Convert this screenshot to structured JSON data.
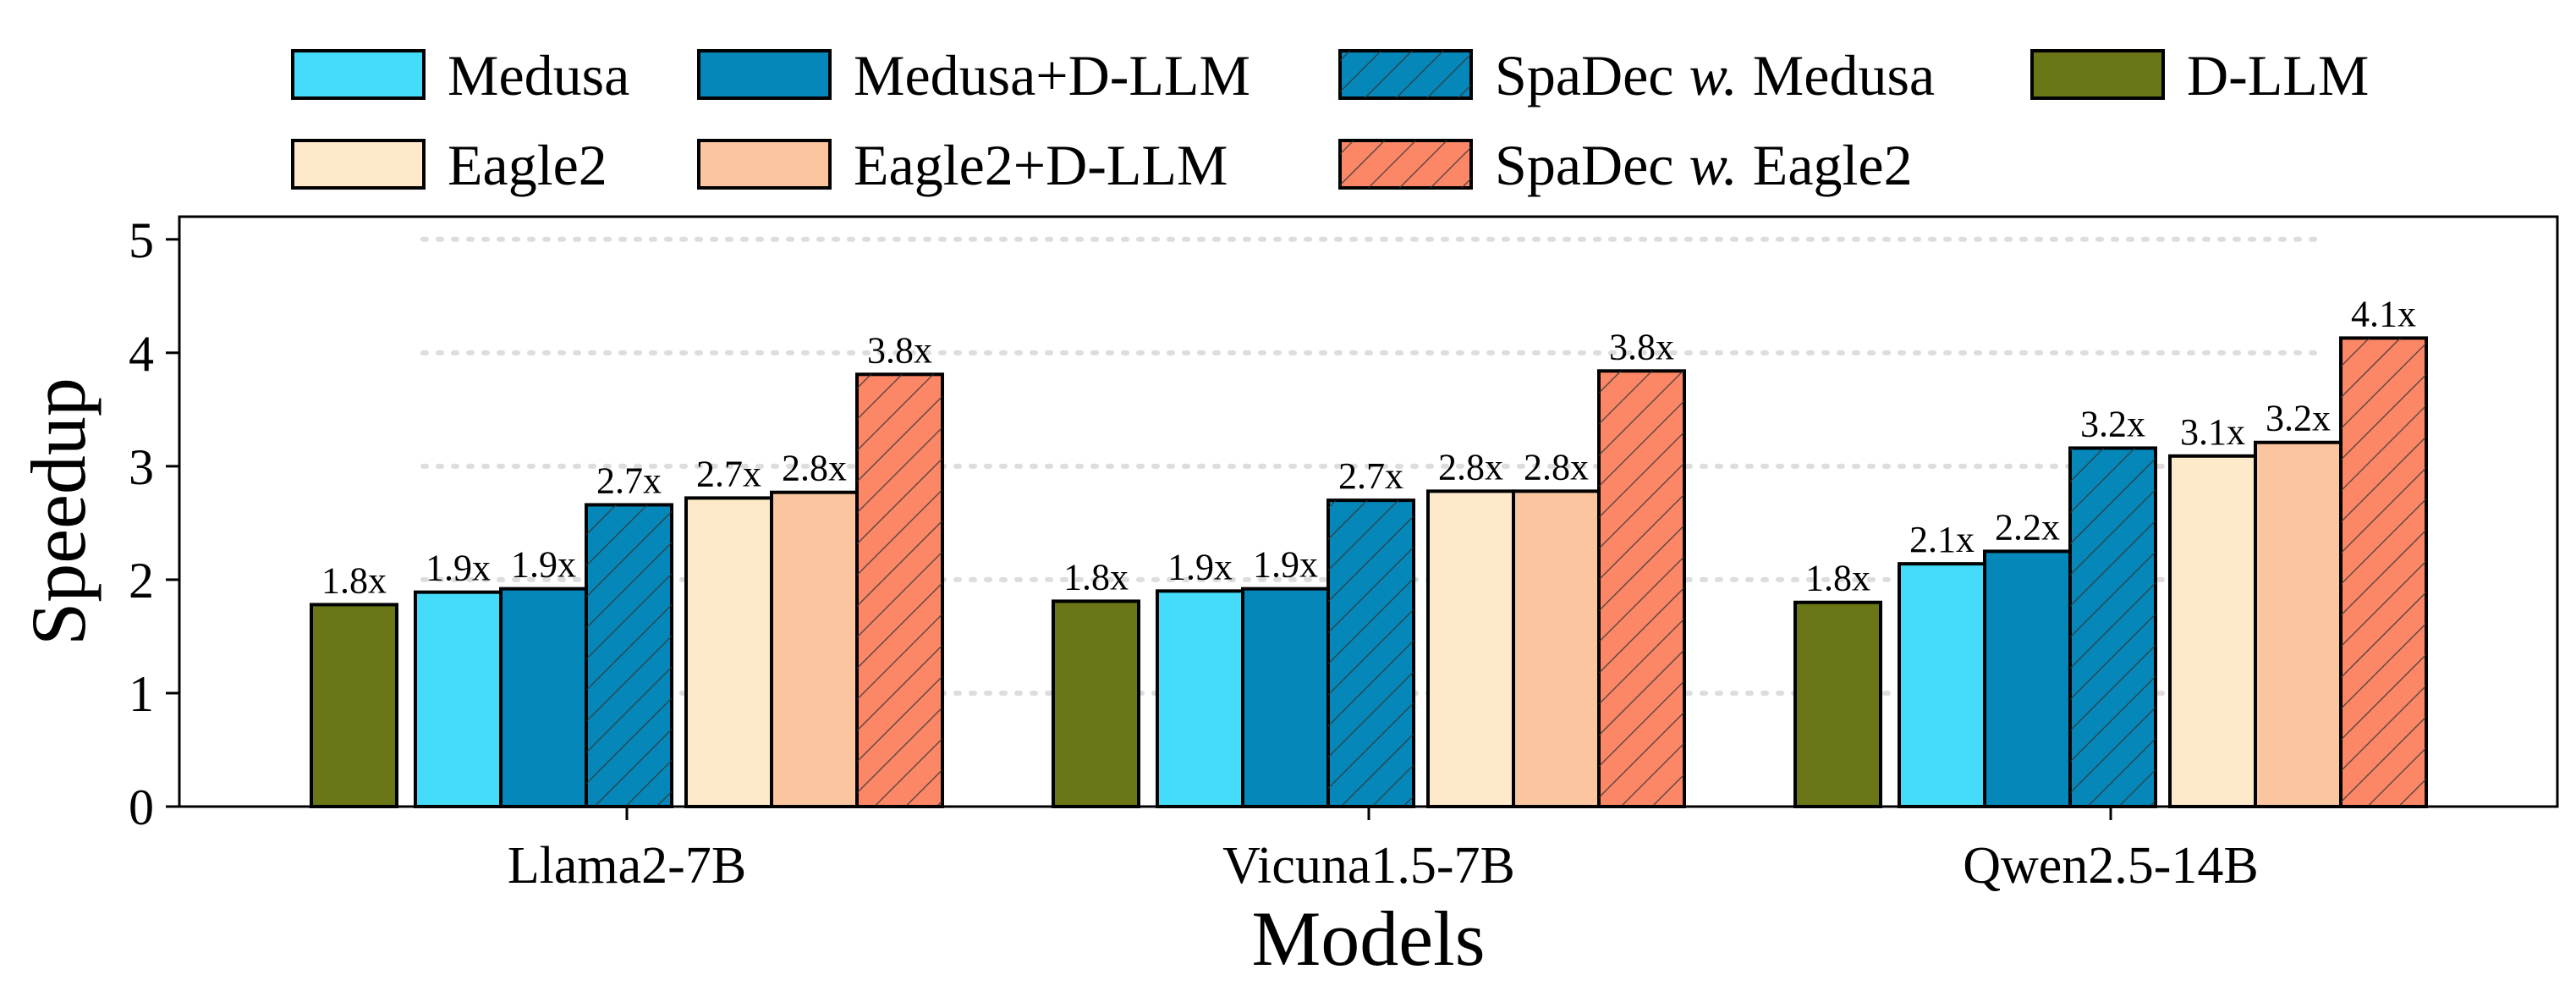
{
  "chart_data": {
    "type": "bar",
    "title": "",
    "xlabel": "Models",
    "ylabel": "Speedup",
    "ylim": [
      0,
      5.2
    ],
    "yticks": [
      "0",
      "1",
      "2",
      "3",
      "4",
      "5"
    ],
    "grid": "horizontal dotted",
    "legend_position": "top",
    "categories": [
      "Llama2-7B",
      "Vicuna1.5-7B",
      "Qwen2.5-14B"
    ],
    "series": [
      {
        "name": "D-LLM",
        "color": "#6b7716",
        "hatch": false,
        "values": [
          1.78,
          1.81,
          1.8
        ],
        "labels": [
          "1.8x",
          "1.8x",
          "1.8x"
        ]
      },
      {
        "name": "Medusa",
        "color": "#45dcfb",
        "hatch": false,
        "values": [
          1.89,
          1.9,
          2.14
        ],
        "labels": [
          "1.9x",
          "1.9x",
          "2.1x"
        ]
      },
      {
        "name": "Medusa+D-LLM",
        "color": "#0588b9",
        "hatch": false,
        "values": [
          1.92,
          1.92,
          2.25
        ],
        "labels": [
          "1.9x",
          "1.9x",
          "2.2x"
        ]
      },
      {
        "name": "SpaDec w. Medusa",
        "color": "#0588b9",
        "hatch": true,
        "values": [
          2.66,
          2.7,
          3.16
        ],
        "labels": [
          "2.7x",
          "2.7x",
          "3.2x"
        ]
      },
      {
        "name": "Eagle2",
        "color": "#feeacb",
        "hatch": false,
        "values": [
          2.72,
          2.78,
          3.09
        ],
        "labels": [
          "2.7x",
          "2.8x",
          "3.1x"
        ]
      },
      {
        "name": "Eagle2+D-LLM",
        "color": "#fbc69f",
        "hatch": false,
        "values": [
          2.77,
          2.78,
          3.21
        ],
        "labels": [
          "2.8x",
          "2.8x",
          "3.2x"
        ]
      },
      {
        "name": "SpaDec w. Eagle2",
        "color": "#fc8766",
        "hatch": true,
        "values": [
          3.81,
          3.84,
          4.13
        ],
        "labels": [
          "3.8x",
          "3.8x",
          "4.1x"
        ]
      }
    ],
    "legend_rows": [
      [
        {
          "series": "Medusa",
          "text": "Medusa"
        },
        {
          "series": "Medusa+D-LLM",
          "text": "Medusa+D-LLM"
        },
        {
          "series": "SpaDec w. Medusa",
          "text": "SpaDec",
          "italic": "w.",
          "suffix": "Medusa"
        },
        {
          "series": "D-LLM",
          "text": "D-LLM"
        }
      ],
      [
        {
          "series": "Eagle2",
          "text": "Eagle2"
        },
        {
          "series": "Eagle2+D-LLM",
          "text": "Eagle2+D-LLM"
        },
        {
          "series": "SpaDec w. Eagle2",
          "text": "SpaDec",
          "italic": "w.",
          "suffix": "Eagle2"
        }
      ]
    ]
  }
}
